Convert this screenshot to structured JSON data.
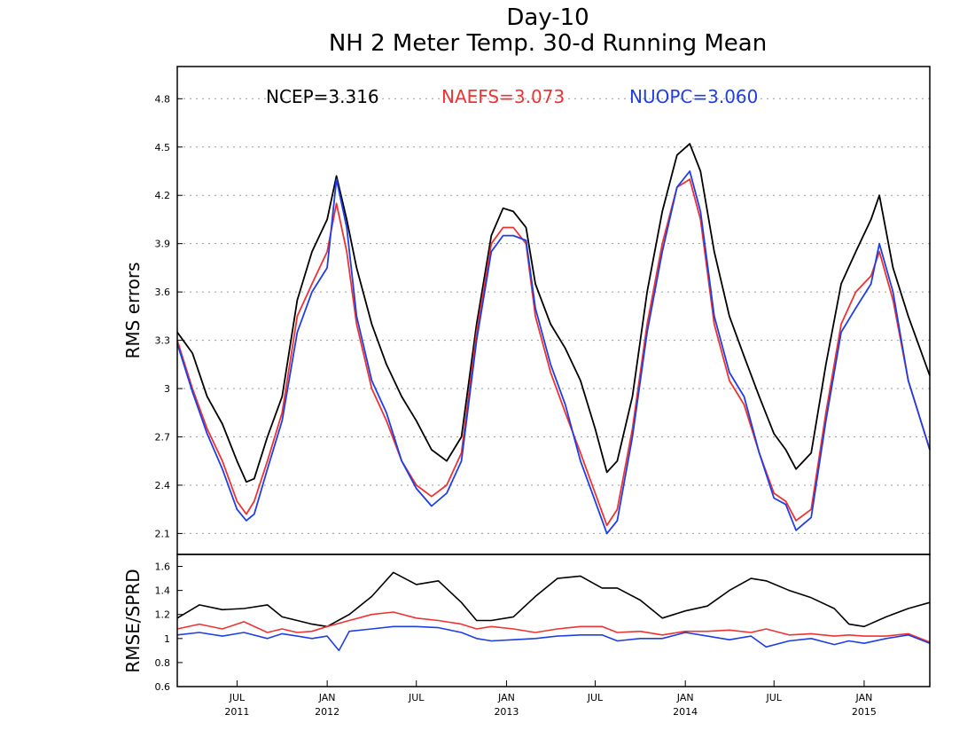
{
  "chart_data": [
    {
      "type": "line",
      "title": "Day-10",
      "subtitle": "NH 2 Meter Temp. 30-d Running Mean",
      "ylabel": "RMS errors",
      "ylim": [
        1.97,
        5.0
      ],
      "yticks": [
        2.1,
        2.4,
        2.7,
        3,
        3.3,
        3.6,
        3.9,
        4.2,
        4.5,
        4.8
      ],
      "ytick_labels": [
        "2.1",
        "2.4",
        "2.7",
        "3",
        "3.3",
        "3.6",
        "3.9",
        "4.2",
        "4.5",
        "4.8"
      ],
      "xlim": [
        "2011-03-01",
        "2015-05-15"
      ],
      "grid": true,
      "legend_position": "top",
      "series": [
        {
          "name": "NCEP=3.316",
          "color": "#000000",
          "x": [
            "2011-03-01",
            "2011-04-01",
            "2011-05-01",
            "2011-06-01",
            "2011-07-01",
            "2011-07-20",
            "2011-08-05",
            "2011-09-01",
            "2011-10-01",
            "2011-11-01",
            "2011-12-01",
            "2012-01-01",
            "2012-01-20",
            "2012-02-10",
            "2012-03-01",
            "2012-04-01",
            "2012-05-01",
            "2012-06-01",
            "2012-07-01",
            "2012-08-01",
            "2012-09-01",
            "2012-10-01",
            "2012-11-01",
            "2012-12-01",
            "2012-12-25",
            "2013-01-15",
            "2013-02-10",
            "2013-03-01",
            "2013-04-01",
            "2013-05-01",
            "2013-06-01",
            "2013-07-01",
            "2013-07-25",
            "2013-08-15",
            "2013-09-15",
            "2013-10-15",
            "2013-11-15",
            "2013-12-15",
            "2014-01-10",
            "2014-02-01",
            "2014-03-01",
            "2014-04-01",
            "2014-05-01",
            "2014-06-01",
            "2014-07-01",
            "2014-07-25",
            "2014-08-15",
            "2014-09-15",
            "2014-10-15",
            "2014-11-15",
            "2014-12-15",
            "2015-01-15",
            "2015-02-01",
            "2015-03-01",
            "2015-04-01",
            "2015-05-15"
          ],
          "values": [
            3.35,
            3.22,
            2.95,
            2.78,
            2.55,
            2.42,
            2.44,
            2.7,
            2.95,
            3.55,
            3.85,
            4.05,
            4.32,
            4.05,
            3.75,
            3.4,
            3.15,
            2.95,
            2.8,
            2.62,
            2.55,
            2.7,
            3.4,
            3.95,
            4.12,
            4.1,
            4.0,
            3.65,
            3.4,
            3.25,
            3.05,
            2.75,
            2.48,
            2.55,
            2.95,
            3.6,
            4.1,
            4.45,
            4.52,
            4.35,
            3.85,
            3.45,
            3.2,
            2.95,
            2.72,
            2.62,
            2.5,
            2.6,
            3.15,
            3.65,
            3.85,
            4.05,
            4.2,
            3.75,
            3.45,
            3.08
          ]
        },
        {
          "name": "NAEFS=3.073",
          "color": "#ee3333",
          "x": [
            "2011-03-01",
            "2011-04-01",
            "2011-05-01",
            "2011-06-01",
            "2011-07-01",
            "2011-07-20",
            "2011-08-05",
            "2011-09-01",
            "2011-10-01",
            "2011-11-01",
            "2011-12-01",
            "2012-01-01",
            "2012-01-20",
            "2012-02-10",
            "2012-03-01",
            "2012-04-01",
            "2012-05-01",
            "2012-06-01",
            "2012-07-01",
            "2012-08-01",
            "2012-09-01",
            "2012-10-01",
            "2012-11-01",
            "2012-12-01",
            "2012-12-25",
            "2013-01-15",
            "2013-02-10",
            "2013-03-01",
            "2013-04-01",
            "2013-05-01",
            "2013-06-01",
            "2013-07-01",
            "2013-07-25",
            "2013-08-15",
            "2013-09-15",
            "2013-10-15",
            "2013-11-15",
            "2013-12-15",
            "2014-01-10",
            "2014-02-01",
            "2014-03-01",
            "2014-04-01",
            "2014-05-01",
            "2014-06-01",
            "2014-07-01",
            "2014-07-25",
            "2014-08-15",
            "2014-09-15",
            "2014-10-15",
            "2014-11-15",
            "2014-12-15",
            "2015-01-15",
            "2015-02-01",
            "2015-03-01",
            "2015-04-01",
            "2015-05-15"
          ],
          "values": [
            3.3,
            3.0,
            2.75,
            2.55,
            2.3,
            2.22,
            2.3,
            2.55,
            2.85,
            3.45,
            3.65,
            3.85,
            4.15,
            3.85,
            3.4,
            3.0,
            2.8,
            2.55,
            2.4,
            2.33,
            2.4,
            2.6,
            3.35,
            3.9,
            4.0,
            4.0,
            3.9,
            3.45,
            3.1,
            2.85,
            2.6,
            2.35,
            2.15,
            2.25,
            2.75,
            3.4,
            3.9,
            4.25,
            4.3,
            4.05,
            3.4,
            3.05,
            2.9,
            2.6,
            2.35,
            2.3,
            2.18,
            2.25,
            2.85,
            3.4,
            3.6,
            3.7,
            3.85,
            3.55,
            3.05,
            2.62
          ]
        },
        {
          "name": "NUOPC=3.060",
          "color": "#1f3ee6",
          "x": [
            "2011-03-01",
            "2011-04-01",
            "2011-05-01",
            "2011-06-01",
            "2011-07-01",
            "2011-07-20",
            "2011-08-05",
            "2011-09-01",
            "2011-10-01",
            "2011-11-01",
            "2011-12-01",
            "2012-01-01",
            "2012-01-20",
            "2012-02-10",
            "2012-03-01",
            "2012-04-01",
            "2012-05-01",
            "2012-06-01",
            "2012-07-01",
            "2012-08-01",
            "2012-09-01",
            "2012-10-01",
            "2012-11-01",
            "2012-12-01",
            "2012-12-25",
            "2013-01-15",
            "2013-02-10",
            "2013-03-01",
            "2013-04-01",
            "2013-05-01",
            "2013-06-01",
            "2013-07-01",
            "2013-07-25",
            "2013-08-15",
            "2013-09-15",
            "2013-10-15",
            "2013-11-15",
            "2013-12-15",
            "2014-01-10",
            "2014-02-01",
            "2014-03-01",
            "2014-04-01",
            "2014-05-01",
            "2014-06-01",
            "2014-07-01",
            "2014-07-25",
            "2014-08-15",
            "2014-09-15",
            "2014-10-15",
            "2014-11-15",
            "2014-12-15",
            "2015-01-15",
            "2015-02-01",
            "2015-03-01",
            "2015-04-01",
            "2015-05-15"
          ],
          "values": [
            3.28,
            2.98,
            2.72,
            2.5,
            2.25,
            2.18,
            2.22,
            2.5,
            2.8,
            3.35,
            3.6,
            3.75,
            4.3,
            4.0,
            3.45,
            3.05,
            2.85,
            2.55,
            2.38,
            2.27,
            2.35,
            2.55,
            3.3,
            3.85,
            3.95,
            3.95,
            3.92,
            3.5,
            3.15,
            2.9,
            2.55,
            2.3,
            2.1,
            2.18,
            2.7,
            3.35,
            3.85,
            4.25,
            4.35,
            4.1,
            3.45,
            3.1,
            2.95,
            2.6,
            2.32,
            2.28,
            2.12,
            2.2,
            2.8,
            3.35,
            3.5,
            3.65,
            3.9,
            3.6,
            3.05,
            2.62
          ]
        }
      ]
    },
    {
      "type": "line",
      "ylabel": "RMSE/SPRD",
      "ylim": [
        0.6,
        1.7
      ],
      "yticks": [
        0.6,
        0.8,
        1,
        1.2,
        1.4,
        1.6
      ],
      "ytick_labels": [
        "0.6",
        "0.8",
        "1",
        "1.2",
        "1.4",
        "1.6"
      ],
      "xlim": [
        "2011-03-01",
        "2015-05-15"
      ],
      "xticks": [
        {
          "date": "2011-07-01",
          "month": "JUL",
          "year": "2011"
        },
        {
          "date": "2012-01-01",
          "month": "JAN",
          "year": "2012"
        },
        {
          "date": "2012-07-01",
          "month": "JUL",
          "year": ""
        },
        {
          "date": "2013-01-01",
          "month": "JAN",
          "year": "2013"
        },
        {
          "date": "2013-07-01",
          "month": "JUL",
          "year": ""
        },
        {
          "date": "2014-01-01",
          "month": "JAN",
          "year": "2014"
        },
        {
          "date": "2014-07-01",
          "month": "JUL",
          "year": ""
        },
        {
          "date": "2015-01-01",
          "month": "JAN",
          "year": "2015"
        }
      ],
      "grid": false,
      "series": [
        {
          "color": "#000000",
          "x": [
            "2011-03-01",
            "2011-04-15",
            "2011-06-01",
            "2011-07-15",
            "2011-09-01",
            "2011-10-01",
            "2011-11-01",
            "2011-12-01",
            "2012-01-01",
            "2012-02-15",
            "2012-04-01",
            "2012-05-15",
            "2012-07-01",
            "2012-08-15",
            "2012-10-01",
            "2012-11-01",
            "2012-12-01",
            "2013-01-15",
            "2013-03-01",
            "2013-04-15",
            "2013-06-01",
            "2013-07-15",
            "2013-08-15",
            "2013-10-01",
            "2013-11-15",
            "2014-01-01",
            "2014-02-15",
            "2014-04-01",
            "2014-05-15",
            "2014-06-15",
            "2014-08-01",
            "2014-09-15",
            "2014-11-01",
            "2014-12-01",
            "2015-01-01",
            "2015-02-15",
            "2015-04-01",
            "2015-05-15"
          ],
          "values": [
            1.17,
            1.28,
            1.24,
            1.25,
            1.28,
            1.18,
            1.15,
            1.12,
            1.1,
            1.2,
            1.35,
            1.55,
            1.45,
            1.48,
            1.3,
            1.15,
            1.15,
            1.18,
            1.35,
            1.5,
            1.52,
            1.42,
            1.42,
            1.32,
            1.17,
            1.23,
            1.27,
            1.4,
            1.5,
            1.48,
            1.4,
            1.34,
            1.25,
            1.12,
            1.1,
            1.18,
            1.25,
            1.3
          ]
        },
        {
          "color": "#ee3333",
          "x": [
            "2011-03-01",
            "2011-04-15",
            "2011-06-01",
            "2011-07-15",
            "2011-09-01",
            "2011-10-01",
            "2011-11-01",
            "2011-12-01",
            "2012-01-01",
            "2012-02-15",
            "2012-04-01",
            "2012-05-15",
            "2012-07-01",
            "2012-08-15",
            "2012-10-01",
            "2012-11-01",
            "2012-12-01",
            "2013-01-15",
            "2013-03-01",
            "2013-04-15",
            "2013-06-01",
            "2013-07-15",
            "2013-08-15",
            "2013-10-01",
            "2013-11-15",
            "2014-01-01",
            "2014-02-15",
            "2014-04-01",
            "2014-05-15",
            "2014-06-15",
            "2014-08-01",
            "2014-09-15",
            "2014-11-01",
            "2014-12-01",
            "2015-01-01",
            "2015-02-15",
            "2015-04-01",
            "2015-05-15"
          ],
          "values": [
            1.08,
            1.12,
            1.08,
            1.14,
            1.05,
            1.08,
            1.05,
            1.06,
            1.1,
            1.15,
            1.2,
            1.22,
            1.17,
            1.15,
            1.12,
            1.08,
            1.1,
            1.08,
            1.05,
            1.08,
            1.1,
            1.1,
            1.05,
            1.06,
            1.03,
            1.06,
            1.06,
            1.07,
            1.05,
            1.08,
            1.03,
            1.04,
            1.02,
            1.03,
            1.02,
            1.02,
            1.04,
            0.97
          ]
        },
        {
          "color": "#1f3ee6",
          "x": [
            "2011-03-01",
            "2011-04-15",
            "2011-06-01",
            "2011-07-15",
            "2011-09-01",
            "2011-10-01",
            "2011-11-01",
            "2011-12-01",
            "2012-01-01",
            "2012-01-25",
            "2012-02-15",
            "2012-04-01",
            "2012-05-15",
            "2012-07-01",
            "2012-08-15",
            "2012-10-01",
            "2012-11-01",
            "2012-12-01",
            "2013-01-15",
            "2013-03-01",
            "2013-04-15",
            "2013-06-01",
            "2013-07-15",
            "2013-08-15",
            "2013-10-01",
            "2013-11-15",
            "2014-01-01",
            "2014-02-15",
            "2014-04-01",
            "2014-05-15",
            "2014-06-15",
            "2014-08-01",
            "2014-09-15",
            "2014-11-01",
            "2014-12-01",
            "2015-01-01",
            "2015-02-15",
            "2015-04-01",
            "2015-05-15"
          ],
          "values": [
            1.03,
            1.05,
            1.02,
            1.05,
            1.0,
            1.04,
            1.02,
            1.0,
            1.02,
            0.9,
            1.06,
            1.08,
            1.1,
            1.1,
            1.09,
            1.05,
            1.0,
            0.98,
            0.99,
            1.0,
            1.02,
            1.03,
            1.03,
            0.98,
            1.0,
            1.0,
            1.05,
            1.02,
            0.99,
            1.02,
            0.93,
            0.98,
            1.0,
            0.95,
            0.98,
            0.96,
            1.0,
            1.03,
            0.96
          ]
        }
      ]
    }
  ]
}
